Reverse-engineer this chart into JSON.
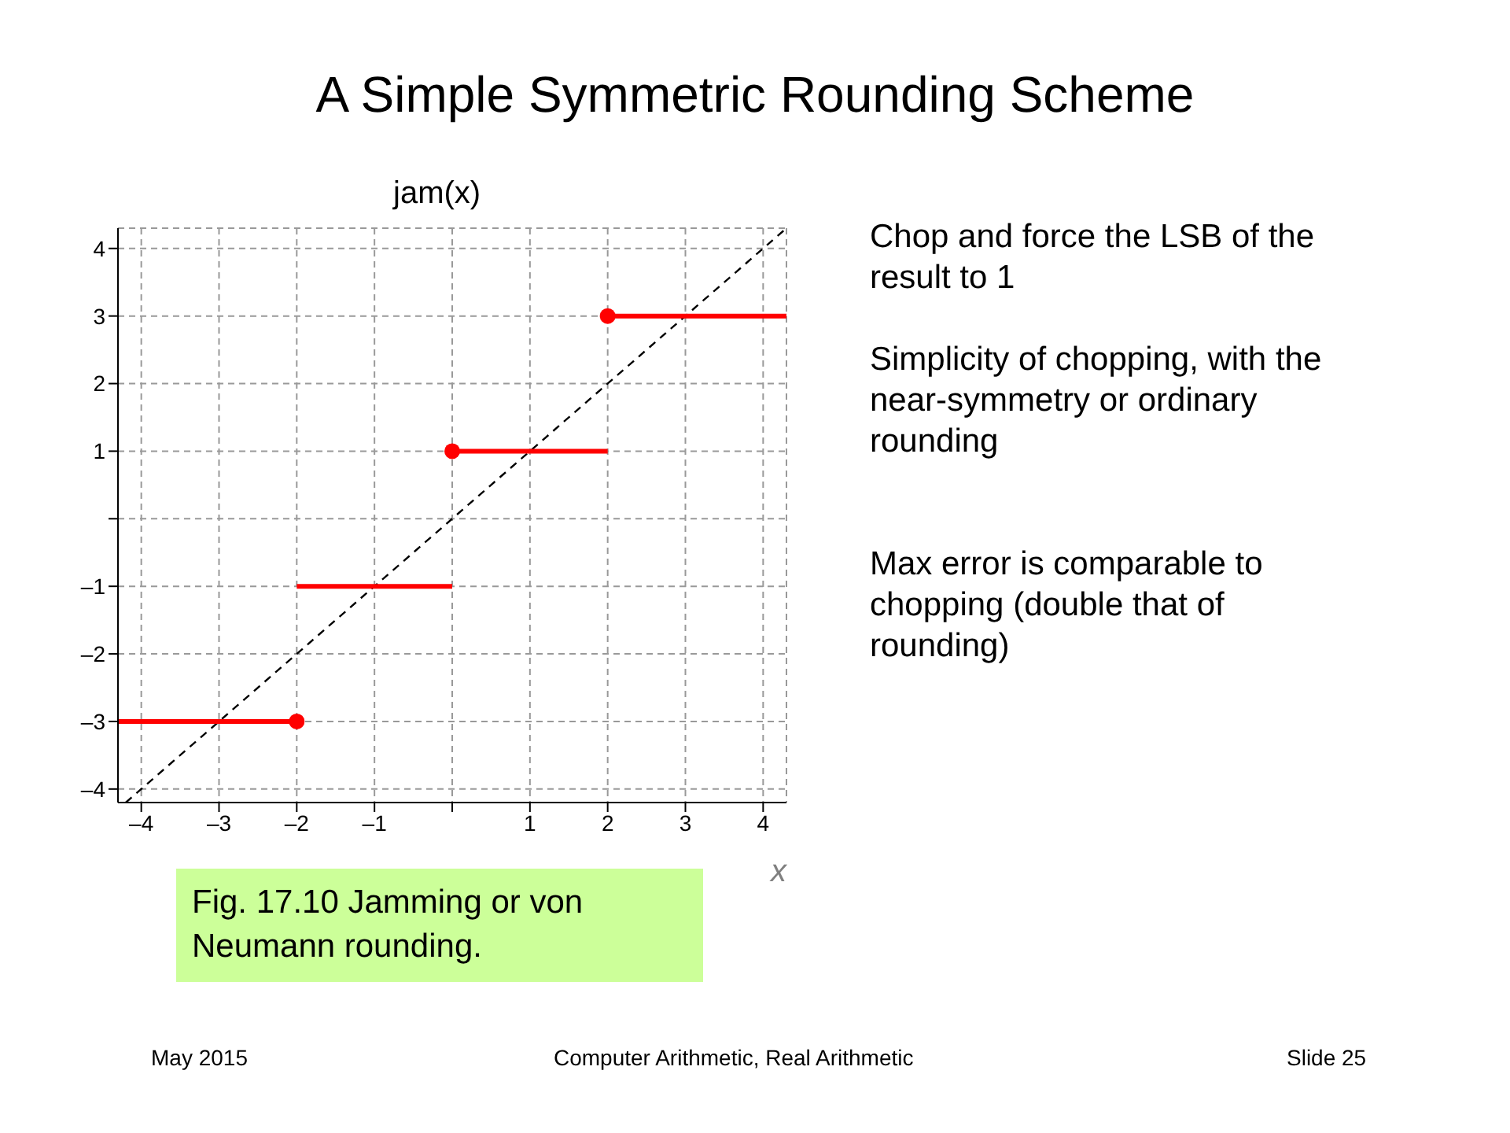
{
  "chart_data": {
    "type": "line",
    "title": "A Simple Symmetric Rounding Scheme",
    "xlabel": "x",
    "ylabel": "jam(x)",
    "xlim": [
      -4.3,
      4.3
    ],
    "ylim": [
      -4.2,
      4.3
    ],
    "xticks": [
      {
        "value": -4,
        "label": "–4"
      },
      {
        "value": -3,
        "label": "–3"
      },
      {
        "value": -2,
        "label": "–2"
      },
      {
        "value": -1,
        "label": "–1"
      },
      {
        "value": 0,
        "label": null
      },
      1,
      2,
      3,
      4
    ],
    "yticks": [
      {
        "value": -4,
        "label": "–4"
      },
      {
        "value": -3,
        "label": "–3"
      },
      {
        "value": -2,
        "label": "–2"
      },
      {
        "value": -1,
        "label": "–1"
      },
      {
        "value": 0,
        "label": null
      },
      1,
      2,
      3,
      4
    ],
    "grid": true,
    "legend": false,
    "series": [
      {
        "x": [
          -4.2,
          4.3
        ],
        "values": [
          -4.2,
          4.3
        ],
        "color": "#000000",
        "line_style": "dashed"
      },
      {
        "x": [
          -4.3,
          -2
        ],
        "values": [
          -3,
          -3
        ],
        "color": "#ff0000",
        "line_style": "solid"
      },
      {
        "x": [
          -2,
          0
        ],
        "values": [
          -1,
          -1
        ],
        "color": "#ff0000",
        "line_style": "solid"
      },
      {
        "x": [
          0,
          2
        ],
        "values": [
          1,
          1
        ],
        "color": "#ff0000",
        "line_style": "solid"
      },
      {
        "x": [
          2,
          4.3
        ],
        "values": [
          3,
          3
        ],
        "color": "#ff0000",
        "line_style": "solid"
      },
      {
        "type": "scatter",
        "x": [
          -2,
          0,
          2
        ],
        "values": [
          -3,
          1,
          3
        ],
        "color": "#ff0000",
        "marker": "circle"
      }
    ],
    "annotations": [
      "Chop and force the LSB of the result to 1",
      "Simplicity of chopping, with the near-symmetry or ordinary rounding",
      "Max error is comparable to chopping (double that of rounding)",
      "Fig. 17.10 Jamming or von Neumann rounding.",
      "May 2015",
      "Computer Arithmetic, Real Arithmetic",
      "Slide 25"
    ]
  }
}
